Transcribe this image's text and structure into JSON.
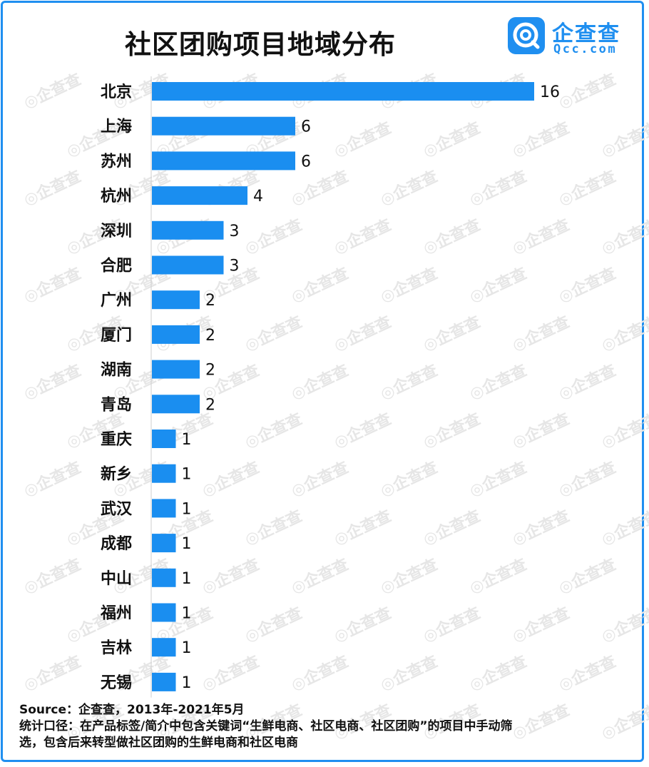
{
  "title": "社区团购项目地域分布",
  "logo": {
    "name": "企查查",
    "domain": "Qcc.com"
  },
  "footer": {
    "source": "Source：企查查，2013年-2021年5月",
    "note_line1": "统计口径：在产品标签/简介中包含关键词“生鲜电商、社区电商、社区团购”的项目中手动筛",
    "note_line2": "选，包含后来转型做社区团购的生鲜电商和社区电商"
  },
  "colors": {
    "bar": "#1a8ef0",
    "accent": "#1f8ff0"
  },
  "chart_data": {
    "type": "bar",
    "orientation": "horizontal",
    "title": "社区团购项目地域分布",
    "categories": [
      "北京",
      "上海",
      "苏州",
      "杭州",
      "深圳",
      "合肥",
      "广州",
      "厦门",
      "湖南",
      "青岛",
      "重庆",
      "新乡",
      "武汉",
      "成都",
      "中山",
      "福州",
      "吉林",
      "无锡"
    ],
    "values": [
      16,
      6,
      6,
      4,
      3,
      3,
      2,
      2,
      2,
      2,
      1,
      1,
      1,
      1,
      1,
      1,
      1,
      1
    ],
    "xlim": [
      0,
      16
    ],
    "grid": false,
    "data_labels": true
  }
}
